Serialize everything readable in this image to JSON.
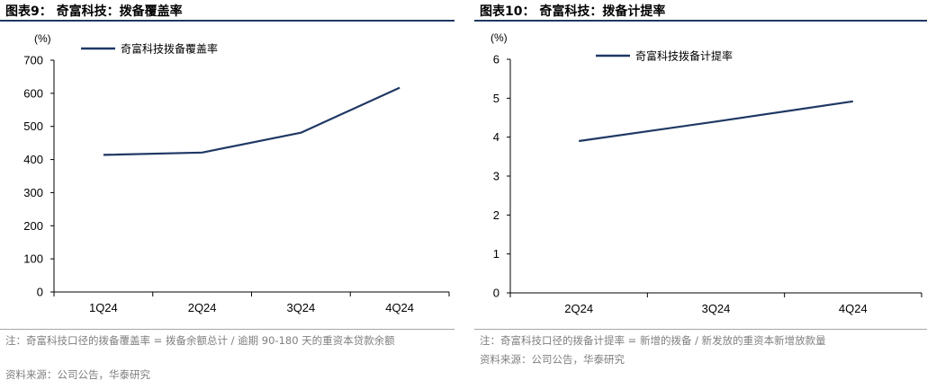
{
  "charts": [
    {
      "title": "图表9：  奇富科技：拨备覆盖率",
      "unit": "(%)",
      "note": "注：奇富科技口径的拨备覆盖率 = 拨备余额总计 / 逾期 90-180 天的重资本贷款余额",
      "source": "资料来源：公司公告，华泰研究",
      "accent": "#1f3864"
    },
    {
      "title": "图表10：  奇富科技：拨备计提率",
      "unit": "(%)",
      "note": "注：奇富科技口径的拨备计提率 = 新增的拨备 / 新发放的重资本新增放款量",
      "source": "资料来源：公司公告，华泰研究",
      "accent": "#1f3864"
    }
  ],
  "chart_data": [
    {
      "type": "line",
      "title": "奇富科技：拨备覆盖率",
      "ylabel": "(%)",
      "xlabel": "",
      "categories": [
        "1Q24",
        "2Q24",
        "3Q24",
        "4Q24"
      ],
      "series": [
        {
          "name": "奇富科技拨备覆盖率",
          "values": [
            414,
            421,
            481,
            617
          ]
        }
      ],
      "ylim": [
        0,
        700
      ],
      "yticks": [
        0,
        100,
        200,
        300,
        400,
        500,
        600,
        700
      ],
      "legend": "top-left",
      "grid": false
    },
    {
      "type": "line",
      "title": "奇富科技：拨备计提率",
      "ylabel": "(%)",
      "xlabel": "",
      "categories": [
        "2Q24",
        "3Q24",
        "4Q24"
      ],
      "series": [
        {
          "name": "奇富科技拨备计提率",
          "values": [
            3.9,
            4.4,
            4.92
          ]
        }
      ],
      "ylim": [
        0,
        6
      ],
      "yticks": [
        0,
        1,
        2,
        3,
        4,
        5,
        6
      ],
      "legend": "top-left",
      "grid": false
    }
  ]
}
